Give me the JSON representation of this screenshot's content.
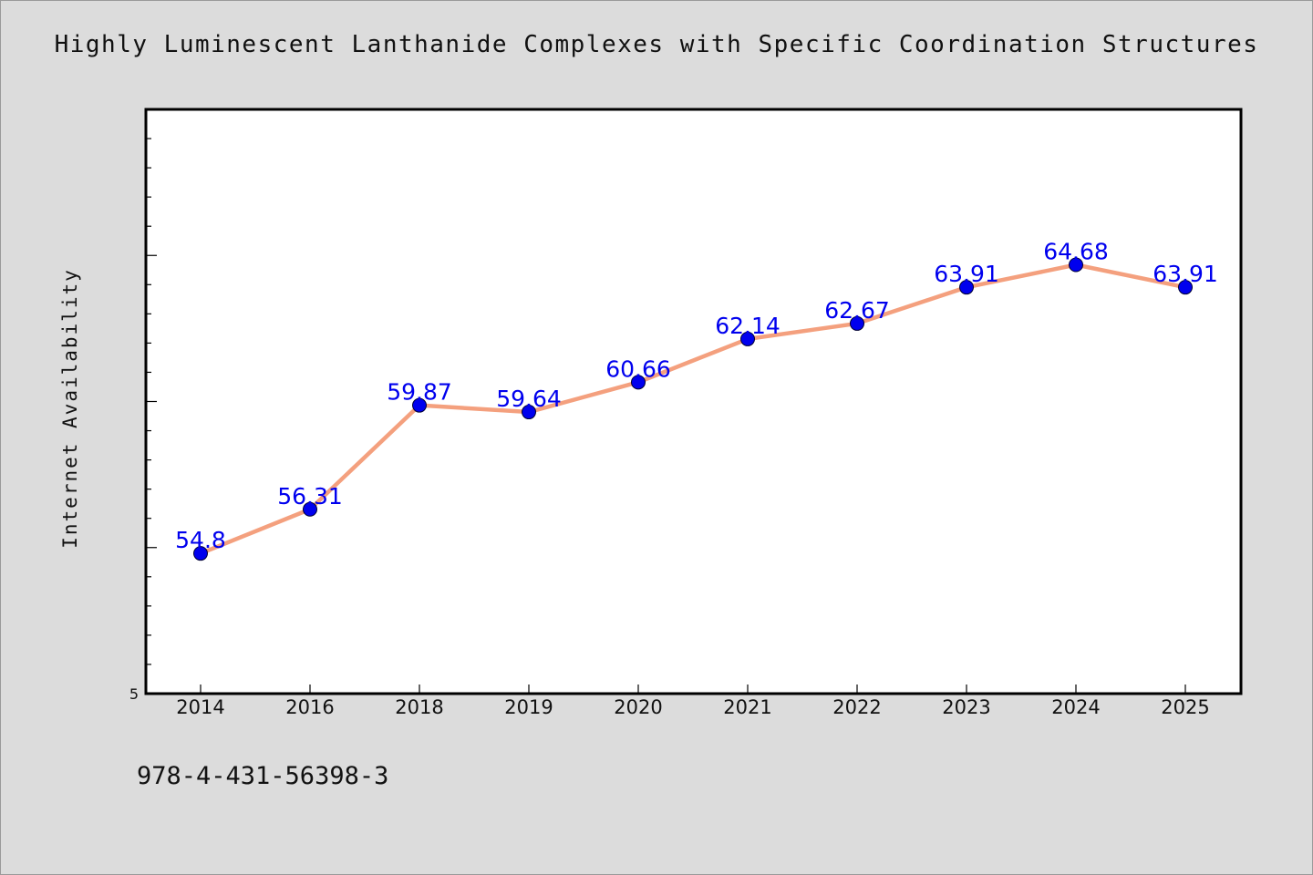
{
  "title": "Highly Luminescent Lanthanide Complexes with Specific Coordination Structures",
  "footer": "978-4-431-56398-3",
  "colors": {
    "background": "#dcdcdc",
    "plot_background": "#ffffff",
    "line": "#f4a07e",
    "marker": "#0000ee",
    "data_label": "#0000ee"
  },
  "chart_data": {
    "type": "line",
    "title": "Highly Luminescent Lanthanide Complexes with Specific Coordination Structures",
    "xlabel": "",
    "ylabel": "Internet Availability",
    "categories": [
      "2014",
      "2016",
      "2018",
      "2019",
      "2020",
      "2021",
      "2022",
      "2023",
      "2024",
      "2025"
    ],
    "series": [
      {
        "values": [
          54.8,
          56.31,
          59.87,
          59.64,
          60.66,
          62.14,
          62.67,
          63.91,
          64.68,
          63.91
        ]
      }
    ],
    "data_labels": [
      "54.8",
      "56.31",
      "59.87",
      "59.64",
      "60.66",
      "62.14",
      "62.67",
      "63.91",
      "64.68",
      "63.91"
    ],
    "ylim": [
      50,
      70
    ],
    "y_tick_labels_visible": [
      "5"
    ],
    "grid": false,
    "legend": "none"
  }
}
